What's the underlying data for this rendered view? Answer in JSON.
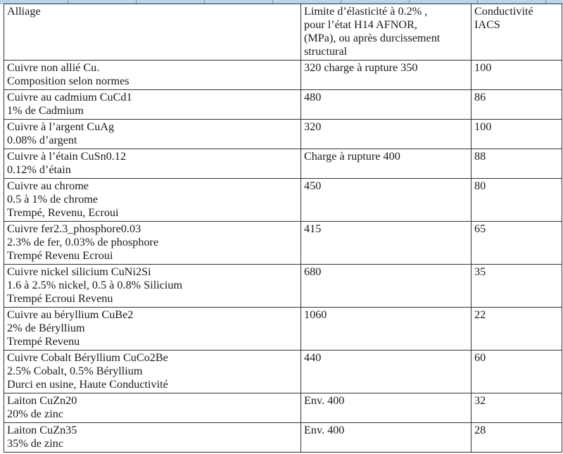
{
  "header": {
    "alloy": "Alliage",
    "yield_lines": [
      "Limite d’élasticité à 0.2% ,",
      "pour l’état H14 AFNOR,",
      "(MPa), ou après durcissement",
      "structural"
    ],
    "conductivity_lines": [
      "Conductivité",
      "IACS"
    ]
  },
  "rows": [
    {
      "alloy": [
        "Cuivre non allié Cu.",
        "Composition selon normes"
      ],
      "yield": "320 charge à rupture 350",
      "conductivity": "100"
    },
    {
      "alloy": [
        "Cuivre au cadmium CuCd1",
        "1% de Cadmium"
      ],
      "yield": "480",
      "conductivity": "86"
    },
    {
      "alloy": [
        "Cuivre à l’argent CuAg",
        "0.08% d’argent"
      ],
      "yield": "320",
      "conductivity": "100"
    },
    {
      "alloy": [
        "Cuivre à l’étain CuSn0.12",
        "0.12% d’étain"
      ],
      "yield": "Charge à rupture 400",
      "conductivity": "88"
    },
    {
      "alloy": [
        "Cuivre au chrome",
        "0.5 à 1% de chrome",
        "Trempé, Revenu, Ecroui"
      ],
      "yield": "450",
      "conductivity": "80"
    },
    {
      "alloy": [
        "Cuivre fer2.3_phosphore0.03",
        "2.3% de fer, 0.03% de phosphore",
        "Trempé Revenu Ecroui"
      ],
      "yield": "415",
      "conductivity": "65"
    },
    {
      "alloy": [
        "Cuivre nickel silicium CuNi2Si",
        "1.6 à 2.5% nickel, 0.5 à 0.8% Silicium",
        "Trempé Ecroui Revenu"
      ],
      "yield": "680",
      "conductivity": "35"
    },
    {
      "alloy": [
        "Cuivre au béryllium CuBe2",
        "2% de Béryllium",
        "Trempé Revenu"
      ],
      "yield": "1060",
      "conductivity": "22"
    },
    {
      "alloy": [
        "Cuivre Cobalt Béryllium CuCo2Be",
        "2.5%  Cobalt, 0.5% Béryllium",
        "Durci en usine, Haute Conductivité"
      ],
      "yield": "440",
      "conductivity": "60"
    },
    {
      "alloy": [
        "Laiton CuZn20",
        "20% de zinc"
      ],
      "yield": "Env. 400",
      "conductivity": "32"
    },
    {
      "alloy": [
        "Laiton CuZn35",
        "35% de zinc"
      ],
      "yield": "Env. 400",
      "conductivity": "28"
    }
  ]
}
